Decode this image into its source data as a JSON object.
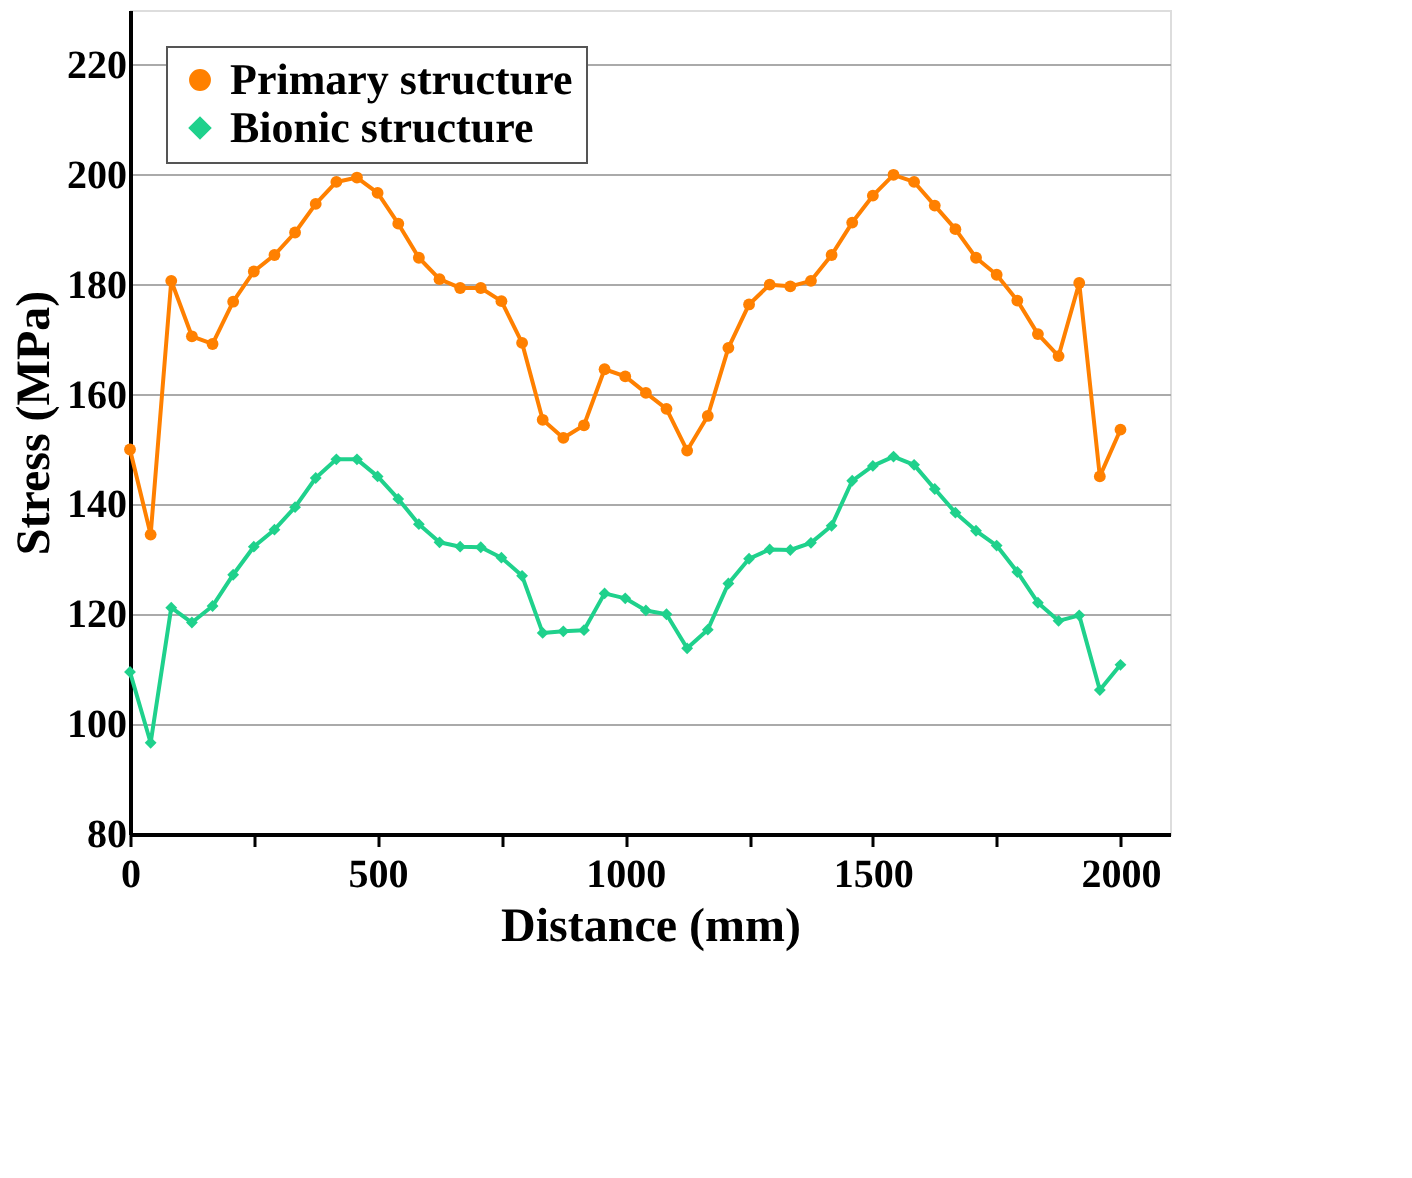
{
  "chart_data": {
    "type": "line",
    "xlabel": "Distance (mm)",
    "ylabel": "Stress (MPa)",
    "x": [
      0,
      41.7,
      83.3,
      125,
      166.7,
      208.3,
      250,
      291.7,
      333.3,
      375,
      416.7,
      458.3,
      500,
      541.7,
      583.3,
      625,
      666.7,
      708.3,
      750,
      791.7,
      833.3,
      875,
      916.7,
      958.3,
      1000,
      1041.7,
      1083.3,
      1125,
      1166.7,
      1208.3,
      1250,
      1291.7,
      1333.3,
      1375,
      1416.7,
      1458.3,
      1500,
      1541.7,
      1583.3,
      1625,
      1666.7,
      1708.3,
      1750,
      1791.7,
      1833.3,
      1875,
      1916.7,
      1958.3,
      2000
    ],
    "series": [
      {
        "name": "Primary structure",
        "color": "#ff8000",
        "marker": "circle",
        "values": [
          150,
          134.5,
          180.7,
          170.6,
          169.2,
          176.9,
          182.4,
          185.4,
          189.5,
          194.7,
          198.7,
          199.5,
          196.7,
          191.1,
          184.9,
          181.0,
          179.4,
          179.4,
          177.0,
          169.4,
          155.4,
          152.1,
          154.4,
          164.6,
          163.3,
          160.3,
          157.4,
          149.8,
          156.1,
          168.5,
          176.4,
          180.0,
          179.7,
          180.7,
          185.4,
          191.3,
          196.2,
          200.0,
          198.7,
          194.4,
          190.1,
          184.9,
          181.8,
          177.1,
          171.0,
          167.0,
          180.3,
          145.1,
          153.6
        ]
      },
      {
        "name": "Bionic structure",
        "color": "#1fd18c",
        "marker": "diamond",
        "values": [
          109.5,
          96.6,
          121.2,
          118.5,
          121.5,
          127.2,
          132.3,
          135.4,
          139.5,
          144.8,
          148.2,
          148.2,
          145.1,
          141.0,
          136.4,
          133.1,
          132.3,
          132.2,
          130.3,
          127.0,
          116.6,
          116.9,
          117.1,
          123.8,
          122.9,
          120.7,
          120.0,
          113.8,
          117.2,
          125.6,
          130.1,
          131.8,
          131.7,
          133.0,
          136.1,
          144.3,
          147.0,
          148.7,
          147.2,
          142.8,
          138.5,
          135.2,
          132.5,
          127.7,
          122.1,
          118.8,
          119.8,
          106.2,
          110.8
        ]
      }
    ],
    "xlim": [
      0,
      2100
    ],
    "xticks": [
      0,
      {
        "value": 250,
        "label": null
      },
      500,
      {
        "value": 750,
        "label": null
      },
      1000,
      {
        "value": 1250,
        "label": null
      },
      1500,
      {
        "value": 1750,
        "label": null
      },
      2000
    ],
    "ylim": [
      80,
      230
    ],
    "yticks": [
      80,
      100,
      120,
      140,
      160,
      180,
      200,
      220
    ],
    "grid": "y",
    "legend": "top left",
    "line_style": "solid"
  }
}
